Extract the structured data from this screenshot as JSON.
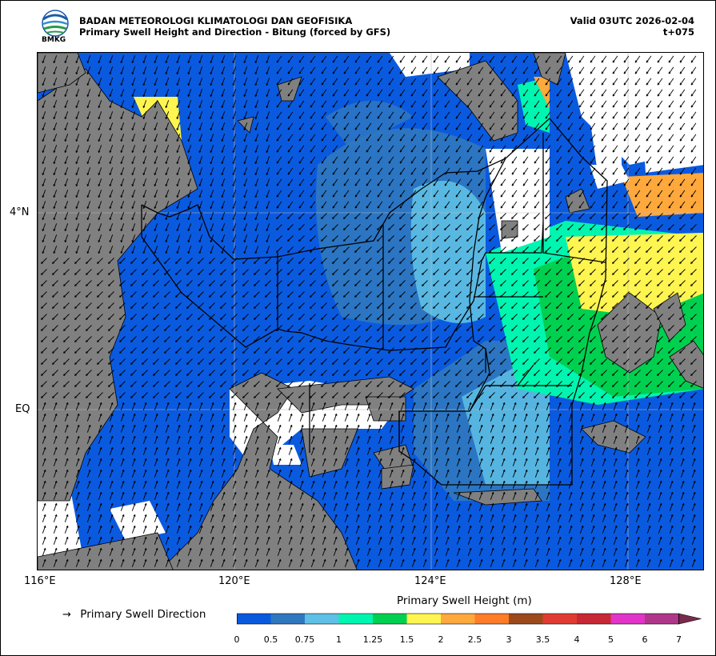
{
  "header": {
    "agency": "BADAN METEOROLOGI KLIMATOLOGI DAN GEOFISIKA",
    "product": "Primary Swell Height and Direction - Bitung (forced by GFS)",
    "valid": "Valid 03UTC 2026-02-04",
    "lead": "t+075",
    "logo_text": "BMKG"
  },
  "map": {
    "lon_labels": [
      "116°E",
      "120°E",
      "124°E",
      "128°E"
    ],
    "lat_labels": [
      "4°N",
      "EQ"
    ],
    "lon_range": [
      116,
      129.6
    ],
    "lat_range": [
      -3.25,
      7.3
    ],
    "arrow_direction": "south-west to south",
    "grid": true,
    "colors": {
      "land": "#808080",
      "sea_no_data": "#ffffff",
      "zone_outline": "#000000"
    }
  },
  "legend": {
    "direction_label": "Primary Swell Direction",
    "direction_icon": "arrow-right-icon",
    "colorbar_title": "Primary Swell Height (m)",
    "ticks": [
      "0",
      "0.5",
      "0.75",
      "1",
      "1.25",
      "1.5",
      "2",
      "2.5",
      "3",
      "3.5",
      "4",
      "5",
      "6",
      "7"
    ],
    "colors": [
      "#0a5ae0",
      "#2f78c0",
      "#5ec0e6",
      "#00f5b0",
      "#00d050",
      "#fff550",
      "#ffa83c",
      "#ff7c28",
      "#9c4a1c",
      "#e23c32",
      "#c82834",
      "#e234c8",
      "#b0368a"
    ],
    "extend_color": "#7a2a4c"
  }
}
